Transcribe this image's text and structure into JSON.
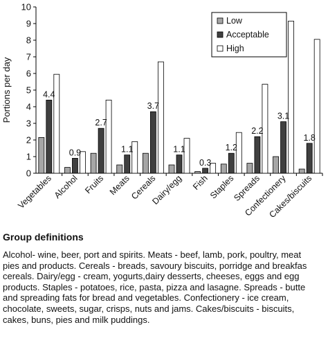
{
  "chart_data": {
    "type": "bar",
    "ylabel": "Portions per day",
    "ylim": [
      0,
      10
    ],
    "yticks": [
      0,
      1,
      2,
      3,
      4,
      5,
      6,
      7,
      8,
      9,
      10
    ],
    "categories": [
      "Vegetables",
      "Alcohol",
      "Fruits",
      "Meats",
      "Cereals",
      "Dairy/egg",
      "Fish",
      "Staples",
      "Spreads",
      "Confectionery",
      "Cakes/biscuits"
    ],
    "series": [
      {
        "name": "Low",
        "color": "#a6a6a6",
        "values": [
          2.15,
          0.35,
          1.2,
          0.5,
          1.2,
          0.5,
          0.1,
          0.55,
          0.6,
          1.0,
          0.25
        ]
      },
      {
        "name": "Acceptable",
        "color": "#404040",
        "values": [
          4.4,
          0.9,
          2.7,
          1.1,
          3.7,
          1.1,
          0.3,
          1.2,
          2.2,
          3.1,
          1.8
        ]
      },
      {
        "name": "High",
        "color": "#ffffff",
        "values": [
          5.95,
          1.3,
          4.4,
          1.9,
          6.7,
          2.1,
          0.6,
          2.45,
          5.35,
          9.15,
          8.05
        ]
      }
    ],
    "data_labels": [
      "4.4",
      "0.9",
      "2.7",
      "1.1",
      "3.7",
      "1.1",
      "0.3",
      "1.2",
      "2.2",
      "3.1",
      "1.8"
    ],
    "legend": "top-right",
    "grid": false
  },
  "caption": {
    "heading": "Group definitions",
    "text": "Alcohol- wine, beer, port and spirits. Meats - beef, lamb, pork, poultry, meat\npies and products. Cereals - breads, savoury biscuits, porridge and breakfas\ncereals. Dairy/egg - cream, yogurts,dairy desserts, cheeses, eggs and egg\nproducts. Staples - potatoes, rice, pasta, pizza and lasagne. Spreads - butte\nand spreading fats for bread and vegetables. Confectionery - ice cream,\nchocolate, sweets, sugar, crisps, nuts and jams. Cakes/biscuits - biscuits,\ncakes, buns, pies and milk puddings."
  }
}
